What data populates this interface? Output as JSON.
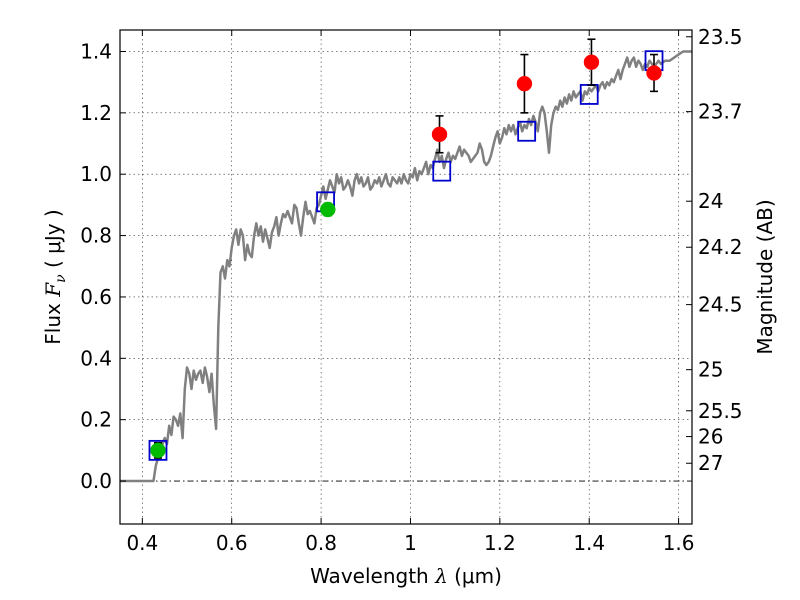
{
  "chart_data": {
    "type": "scatter",
    "xlabel_prefix": "Wavelength  ",
    "xlabel_symbol": "λ",
    "xlabel_units": " (μm)",
    "ylabel_prefix": "Flux  ",
    "ylabel_symbol": "F",
    "ylabel_sub": "ν",
    "ylabel_units": "  ( μJy )",
    "ylabel_right": "Magnitude (AB)",
    "xlim": [
      0.35,
      1.63
    ],
    "ylim": [
      -0.14,
      1.47
    ],
    "x_ticks": [
      {
        "value": 0.4,
        "label": "0.4"
      },
      {
        "value": 0.6,
        "label": "0.6"
      },
      {
        "value": 0.8,
        "label": "0.8"
      },
      {
        "value": 1.0,
        "label": "1"
      },
      {
        "value": 1.2,
        "label": "1.2"
      },
      {
        "value": 1.4,
        "label": "1.4"
      },
      {
        "value": 1.6,
        "label": "1.6"
      }
    ],
    "y_ticks": [
      {
        "value": 0.0,
        "label": "0.0"
      },
      {
        "value": 0.2,
        "label": "0.2"
      },
      {
        "value": 0.4,
        "label": "0.4"
      },
      {
        "value": 0.6,
        "label": "0.6"
      },
      {
        "value": 0.8,
        "label": "0.8"
      },
      {
        "value": 1.0,
        "label": "1.0"
      },
      {
        "value": 1.2,
        "label": "1.2"
      },
      {
        "value": 1.4,
        "label": "1.4"
      }
    ],
    "right_ticks": [
      {
        "flux": 1.448,
        "label": "23.5"
      },
      {
        "flux": 1.204,
        "label": "23.7"
      },
      {
        "flux": 0.912,
        "label": "24"
      },
      {
        "flux": 0.762,
        "label": "24.2"
      },
      {
        "flux": 0.575,
        "label": "24.5"
      },
      {
        "flux": 0.363,
        "label": "25"
      },
      {
        "flux": 0.229,
        "label": "25.5"
      },
      {
        "flux": 0.145,
        "label": "26"
      },
      {
        "flux": 0.058,
        "label": "27"
      }
    ],
    "series": [
      {
        "name": "model-sed",
        "kind": "line",
        "color": "#808080",
        "points": [
          [
            0.35,
            0.0
          ],
          [
            0.4,
            0.0
          ],
          [
            0.425,
            0.0
          ],
          [
            0.43,
            0.05
          ],
          [
            0.44,
            0.1
          ],
          [
            0.45,
            0.14
          ],
          [
            0.455,
            0.12
          ],
          [
            0.46,
            0.18
          ],
          [
            0.465,
            0.15
          ],
          [
            0.47,
            0.21
          ],
          [
            0.475,
            0.2
          ],
          [
            0.48,
            0.18
          ],
          [
            0.485,
            0.22
          ],
          [
            0.49,
            0.14
          ],
          [
            0.495,
            0.3
          ],
          [
            0.5,
            0.37
          ],
          [
            0.505,
            0.35
          ],
          [
            0.51,
            0.3
          ],
          [
            0.515,
            0.36
          ],
          [
            0.52,
            0.33
          ],
          [
            0.525,
            0.35
          ],
          [
            0.53,
            0.36
          ],
          [
            0.535,
            0.32
          ],
          [
            0.54,
            0.37
          ],
          [
            0.545,
            0.34
          ],
          [
            0.55,
            0.29
          ],
          [
            0.555,
            0.35
          ],
          [
            0.56,
            0.25
          ],
          [
            0.565,
            0.17
          ],
          [
            0.57,
            0.5
          ],
          [
            0.575,
            0.68
          ],
          [
            0.58,
            0.7
          ],
          [
            0.585,
            0.66
          ],
          [
            0.59,
            0.72
          ],
          [
            0.595,
            0.7
          ],
          [
            0.6,
            0.76
          ],
          [
            0.605,
            0.8
          ],
          [
            0.61,
            0.82
          ],
          [
            0.615,
            0.77
          ],
          [
            0.62,
            0.82
          ],
          [
            0.625,
            0.8
          ],
          [
            0.63,
            0.72
          ],
          [
            0.635,
            0.77
          ],
          [
            0.64,
            0.74
          ],
          [
            0.645,
            0.73
          ],
          [
            0.65,
            0.8
          ],
          [
            0.655,
            0.84
          ],
          [
            0.66,
            0.8
          ],
          [
            0.665,
            0.83
          ],
          [
            0.67,
            0.78
          ],
          [
            0.675,
            0.82
          ],
          [
            0.68,
            0.79
          ],
          [
            0.685,
            0.76
          ],
          [
            0.69,
            0.81
          ],
          [
            0.695,
            0.83
          ],
          [
            0.7,
            0.86
          ],
          [
            0.705,
            0.8
          ],
          [
            0.71,
            0.84
          ],
          [
            0.715,
            0.87
          ],
          [
            0.72,
            0.86
          ],
          [
            0.725,
            0.88
          ],
          [
            0.73,
            0.86
          ],
          [
            0.735,
            0.84
          ],
          [
            0.74,
            0.9
          ],
          [
            0.745,
            0.89
          ],
          [
            0.75,
            0.84
          ],
          [
            0.755,
            0.8
          ],
          [
            0.76,
            0.86
          ],
          [
            0.765,
            0.91
          ],
          [
            0.77,
            0.87
          ],
          [
            0.775,
            0.88
          ],
          [
            0.78,
            0.86
          ],
          [
            0.785,
            0.84
          ],
          [
            0.79,
            0.89
          ],
          [
            0.795,
            0.9
          ],
          [
            0.8,
            0.93
          ],
          [
            0.805,
            0.96
          ],
          [
            0.81,
            0.92
          ],
          [
            0.815,
            0.95
          ],
          [
            0.82,
            0.98
          ],
          [
            0.825,
            0.96
          ],
          [
            0.83,
            0.94
          ],
          [
            0.835,
            1.0
          ],
          [
            0.84,
            0.97
          ],
          [
            0.845,
            0.99
          ],
          [
            0.85,
            0.95
          ],
          [
            0.855,
            0.96
          ],
          [
            0.86,
            0.98
          ],
          [
            0.865,
            0.96
          ],
          [
            0.87,
            0.93
          ],
          [
            0.875,
            0.98
          ],
          [
            0.88,
            1.0
          ],
          [
            0.885,
            0.97
          ],
          [
            0.89,
            0.99
          ],
          [
            0.895,
            0.96
          ],
          [
            0.9,
            0.97
          ],
          [
            0.905,
            0.99
          ],
          [
            0.91,
            0.95
          ],
          [
            0.915,
            0.96
          ],
          [
            0.92,
            0.98
          ],
          [
            0.925,
            0.97
          ],
          [
            0.93,
            0.99
          ],
          [
            0.935,
            0.96
          ],
          [
            0.94,
            0.98
          ],
          [
            0.945,
            1.0
          ],
          [
            0.95,
            0.97
          ],
          [
            0.955,
            0.96
          ],
          [
            0.96,
            0.99
          ],
          [
            0.965,
            0.98
          ],
          [
            0.97,
            0.97
          ],
          [
            0.975,
            0.99
          ],
          [
            0.98,
            0.97
          ],
          [
            0.985,
            1.0
          ],
          [
            0.99,
            0.98
          ],
          [
            0.995,
            0.97
          ],
          [
            1.0,
            1.0
          ],
          [
            1.005,
            0.99
          ],
          [
            1.01,
            1.02
          ],
          [
            1.015,
            0.98
          ],
          [
            1.02,
            1.01
          ],
          [
            1.025,
            1.0
          ],
          [
            1.03,
            1.02
          ],
          [
            1.035,
            1.04
          ],
          [
            1.04,
            1.0
          ],
          [
            1.045,
            1.03
          ],
          [
            1.05,
            1.02
          ],
          [
            1.055,
            1.05
          ],
          [
            1.06,
            1.08
          ],
          [
            1.065,
            1.04
          ],
          [
            1.07,
            1.06
          ],
          [
            1.075,
            1.02
          ],
          [
            1.08,
            1.05
          ],
          [
            1.085,
            1.07
          ],
          [
            1.09,
            1.04
          ],
          [
            1.095,
            1.06
          ],
          [
            1.1,
            1.05
          ],
          [
            1.105,
            1.07
          ],
          [
            1.11,
            1.09
          ],
          [
            1.115,
            1.06
          ],
          [
            1.12,
            1.08
          ],
          [
            1.125,
            1.07
          ],
          [
            1.13,
            1.06
          ],
          [
            1.135,
            1.04
          ],
          [
            1.14,
            1.05
          ],
          [
            1.15,
            1.07
          ],
          [
            1.155,
            1.1
          ],
          [
            1.16,
            1.08
          ],
          [
            1.165,
            1.04
          ],
          [
            1.17,
            1.03
          ],
          [
            1.175,
            1.04
          ],
          [
            1.18,
            1.06
          ],
          [
            1.185,
            1.09
          ],
          [
            1.19,
            1.12
          ],
          [
            1.195,
            1.14
          ],
          [
            1.2,
            1.1
          ],
          [
            1.205,
            1.12
          ],
          [
            1.21,
            1.15
          ],
          [
            1.215,
            1.13
          ],
          [
            1.22,
            1.16
          ],
          [
            1.225,
            1.14
          ],
          [
            1.23,
            1.16
          ],
          [
            1.235,
            1.13
          ],
          [
            1.24,
            1.15
          ],
          [
            1.245,
            1.17
          ],
          [
            1.25,
            1.14
          ],
          [
            1.255,
            1.16
          ],
          [
            1.26,
            1.15
          ],
          [
            1.265,
            1.18
          ],
          [
            1.27,
            1.16
          ],
          [
            1.275,
            1.19
          ],
          [
            1.28,
            1.17
          ],
          [
            1.285,
            1.14
          ],
          [
            1.29,
            1.2
          ],
          [
            1.295,
            1.22
          ],
          [
            1.3,
            1.2
          ],
          [
            1.305,
            1.14
          ],
          [
            1.31,
            1.07
          ],
          [
            1.315,
            1.16
          ],
          [
            1.32,
            1.2
          ],
          [
            1.325,
            1.22
          ],
          [
            1.33,
            1.21
          ],
          [
            1.335,
            1.24
          ],
          [
            1.34,
            1.22
          ],
          [
            1.345,
            1.25
          ],
          [
            1.35,
            1.23
          ],
          [
            1.355,
            1.26
          ],
          [
            1.36,
            1.24
          ],
          [
            1.365,
            1.27
          ],
          [
            1.37,
            1.25
          ],
          [
            1.375,
            1.26
          ],
          [
            1.38,
            1.27
          ],
          [
            1.385,
            1.24
          ],
          [
            1.39,
            1.27
          ],
          [
            1.395,
            1.26
          ],
          [
            1.4,
            1.28
          ],
          [
            1.405,
            1.27
          ],
          [
            1.41,
            1.28
          ],
          [
            1.415,
            1.29
          ],
          [
            1.42,
            1.27
          ],
          [
            1.425,
            1.29
          ],
          [
            1.43,
            1.3
          ],
          [
            1.435,
            1.28
          ],
          [
            1.44,
            1.3
          ],
          [
            1.445,
            1.29
          ],
          [
            1.45,
            1.31
          ],
          [
            1.455,
            1.3
          ],
          [
            1.46,
            1.32
          ],
          [
            1.465,
            1.34
          ],
          [
            1.47,
            1.31
          ],
          [
            1.475,
            1.34
          ],
          [
            1.48,
            1.36
          ],
          [
            1.485,
            1.38
          ],
          [
            1.49,
            1.35
          ],
          [
            1.495,
            1.37
          ],
          [
            1.5,
            1.38
          ],
          [
            1.505,
            1.35
          ],
          [
            1.51,
            1.37
          ],
          [
            1.515,
            1.36
          ],
          [
            1.52,
            1.34
          ],
          [
            1.525,
            1.36
          ],
          [
            1.53,
            1.35
          ],
          [
            1.535,
            1.37
          ],
          [
            1.54,
            1.36
          ],
          [
            1.545,
            1.35
          ],
          [
            1.55,
            1.36
          ],
          [
            1.555,
            1.37
          ],
          [
            1.56,
            1.36
          ],
          [
            1.57,
            1.37
          ],
          [
            1.58,
            1.37
          ],
          [
            1.59,
            1.38
          ],
          [
            1.6,
            1.39
          ],
          [
            1.61,
            1.4
          ],
          [
            1.62,
            1.4
          ],
          [
            1.63,
            1.4
          ]
        ]
      },
      {
        "name": "model-band-flux",
        "kind": "square",
        "color": "#0000cc",
        "points": [
          [
            0.435,
            0.1
          ],
          [
            0.81,
            0.91
          ],
          [
            1.07,
            1.01
          ],
          [
            1.26,
            1.14
          ],
          [
            1.4,
            1.26
          ],
          [
            1.545,
            1.37
          ]
        ]
      },
      {
        "name": "observed-optical",
        "kind": "circle",
        "color": "#00bb00",
        "points": [
          [
            0.435,
            0.1,
            0.025
          ],
          [
            0.815,
            0.885,
            0.02
          ]
        ]
      },
      {
        "name": "observed-nir",
        "kind": "circle",
        "color": "#ff0000",
        "points": [
          [
            1.065,
            1.13,
            0.06
          ],
          [
            1.255,
            1.295,
            0.095
          ],
          [
            1.405,
            1.365,
            0.075
          ],
          [
            1.545,
            1.33,
            0.06
          ]
        ]
      }
    ]
  }
}
